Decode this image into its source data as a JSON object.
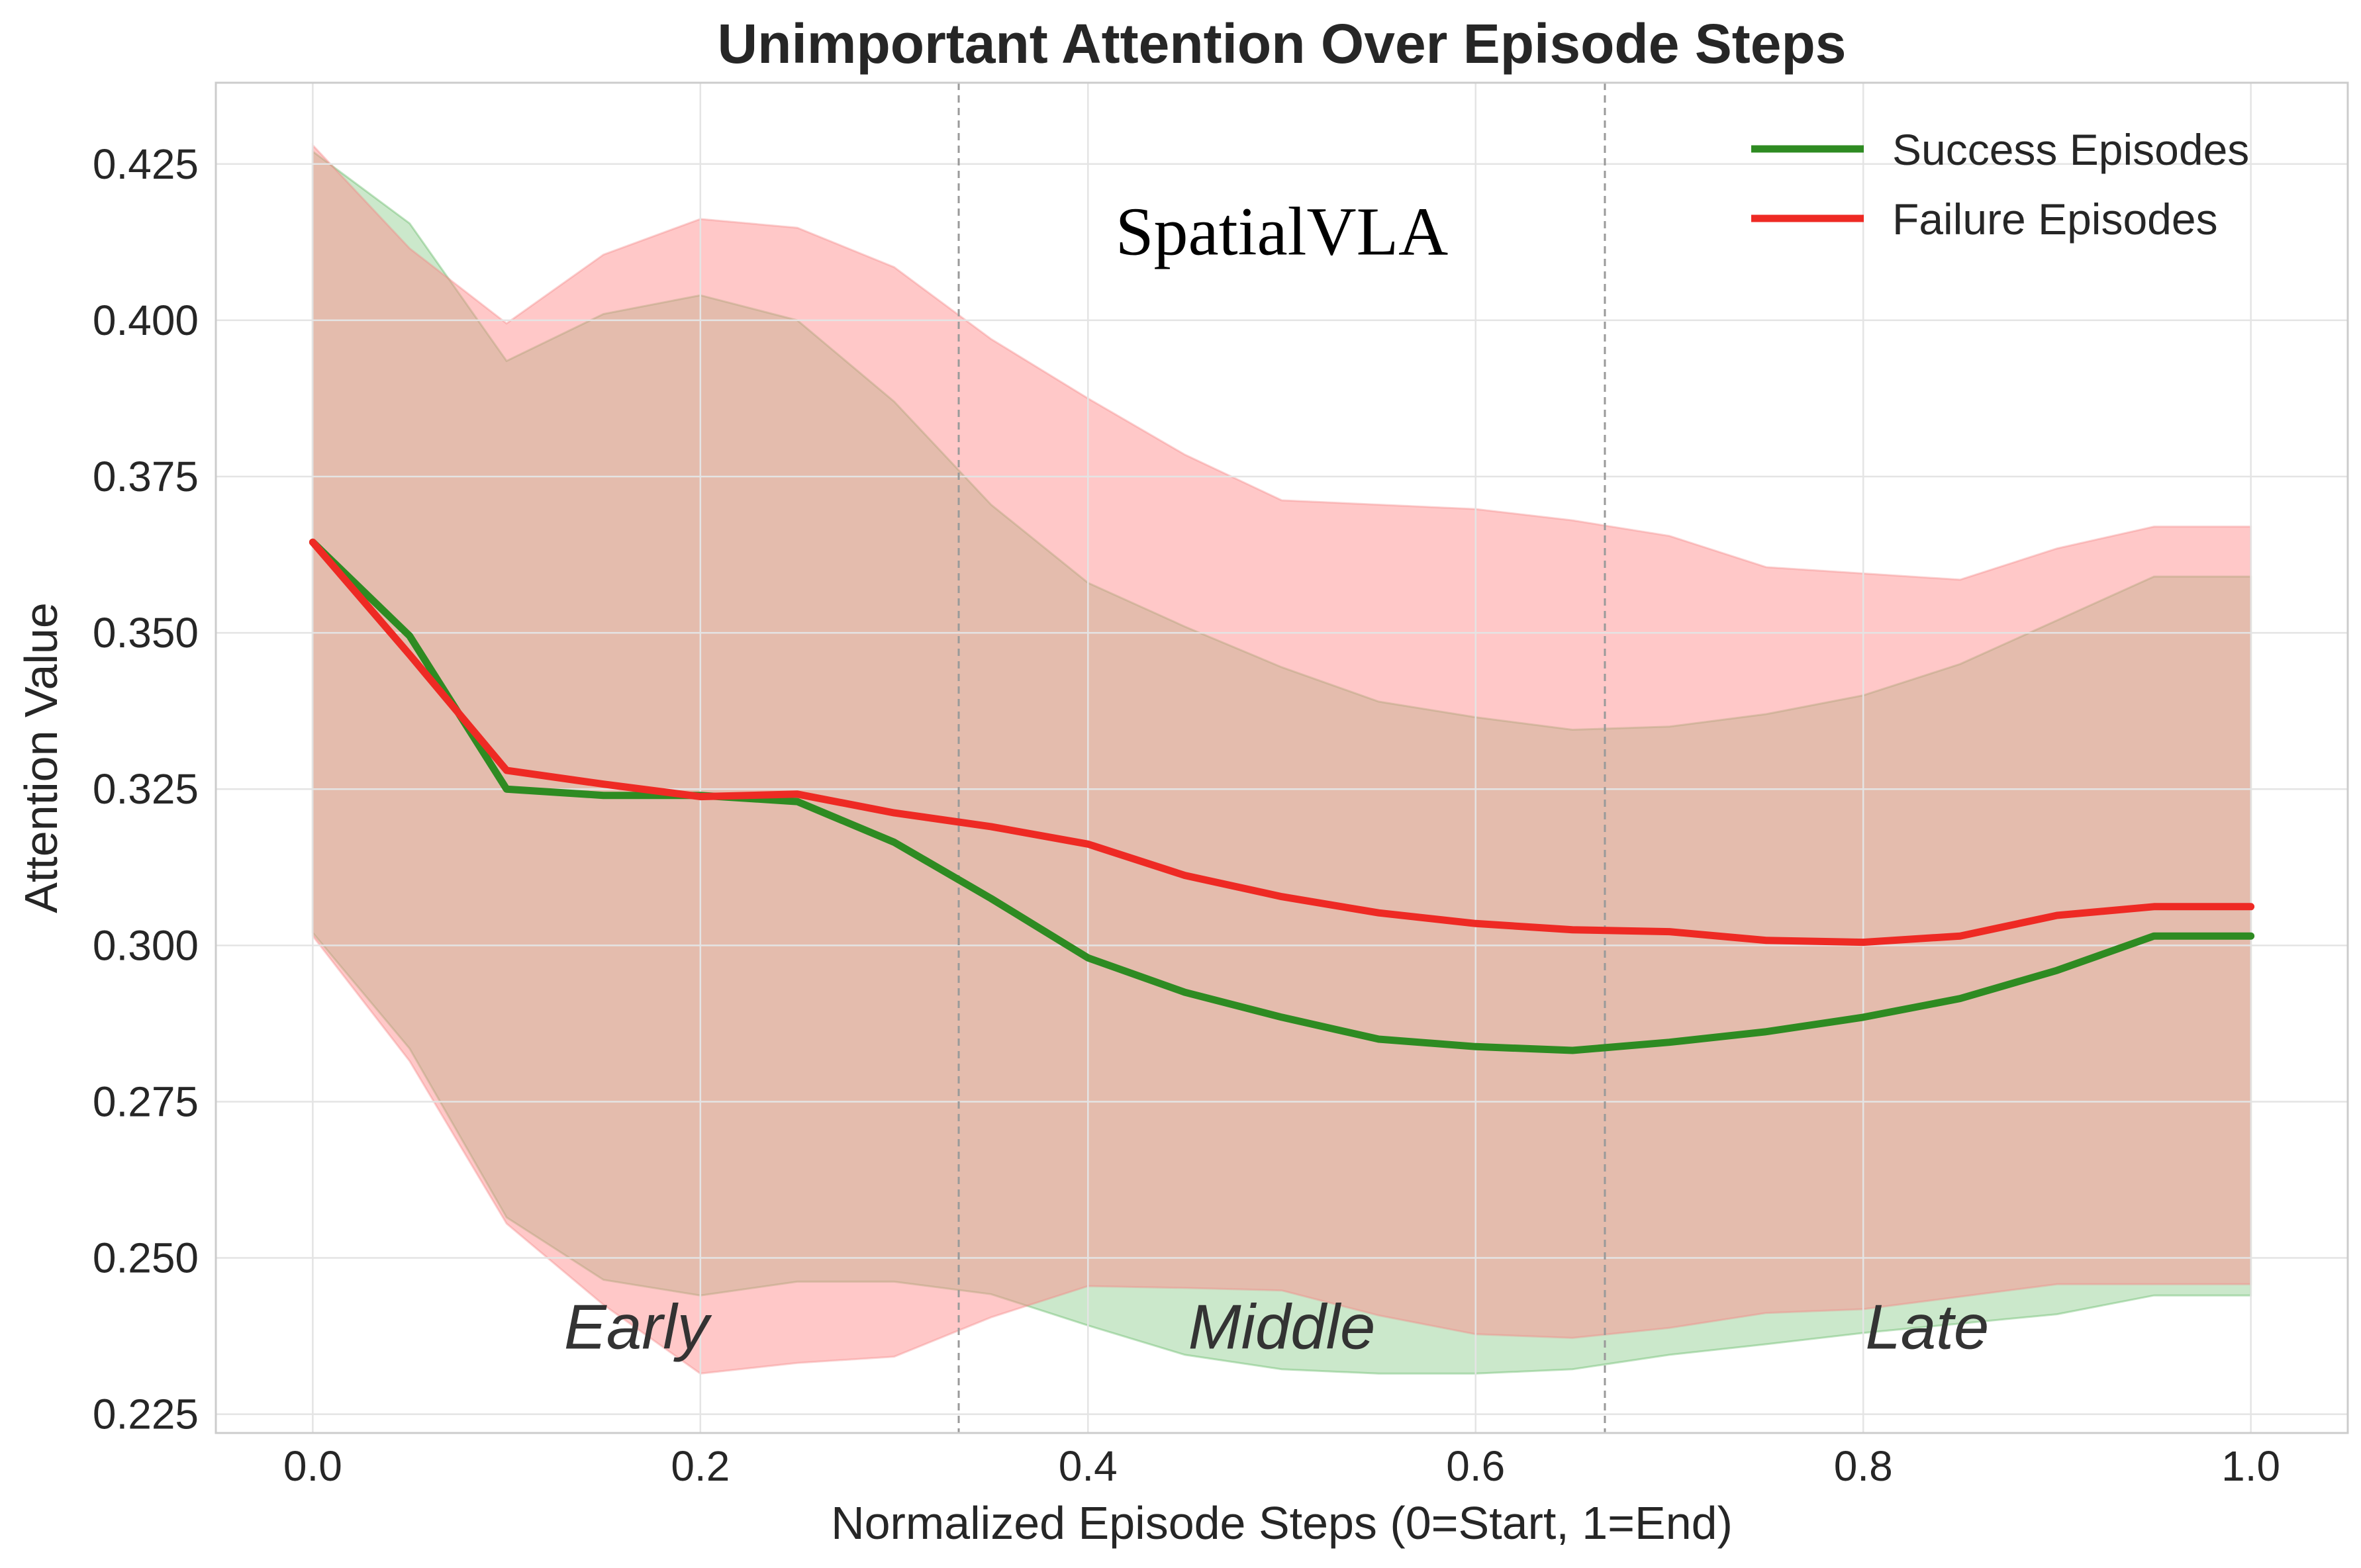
{
  "chart_data": {
    "type": "line",
    "title": "Unimportant Attention Over Episode Steps",
    "xlabel": "Normalized Episode Steps (0=Start, 1=End)",
    "ylabel": "Attention Value",
    "xlim": [
      -0.05,
      1.05
    ],
    "ylim": [
      0.222,
      0.438
    ],
    "x_ticks": [
      0.0,
      0.2,
      0.4,
      0.6,
      0.8,
      1.0
    ],
    "x_tick_labels": [
      "0.0",
      "0.2",
      "0.4",
      "0.6",
      "0.8",
      "1.0"
    ],
    "y_ticks": [
      0.225,
      0.25,
      0.275,
      0.3,
      0.325,
      0.35,
      0.375,
      0.4,
      0.425
    ],
    "y_tick_labels": [
      "0.225",
      "0.250",
      "0.275",
      "0.300",
      "0.325",
      "0.350",
      "0.375",
      "0.400",
      "0.425"
    ],
    "grid": true,
    "legend_position": "top-right",
    "phase_dividers": [
      0.3333,
      0.6667
    ],
    "phase_labels": [
      {
        "text": "Early",
        "x": 0.167,
        "y": 0.2355
      },
      {
        "text": "Middle",
        "x": 0.5,
        "y": 0.2355
      },
      {
        "text": "Late",
        "x": 0.833,
        "y": 0.2355
      }
    ],
    "annotation": {
      "text": "SpatialVLA",
      "x": 0.5,
      "y": 0.4105
    },
    "x": [
      0.0,
      0.05,
      0.1,
      0.15,
      0.2,
      0.25,
      0.3,
      0.35,
      0.4,
      0.45,
      0.5,
      0.55,
      0.6,
      0.65,
      0.7,
      0.75,
      0.8,
      0.85,
      0.9,
      0.95,
      1.0
    ],
    "series": [
      {
        "name": "Success Episodes",
        "color": "#2e8b22",
        "band_color": "#6fbf6f",
        "values": [
          0.3645,
          0.3495,
          0.325,
          0.324,
          0.324,
          0.323,
          0.3165,
          0.3075,
          0.298,
          0.2925,
          0.2885,
          0.285,
          0.2838,
          0.2832,
          0.2845,
          0.2862,
          0.2885,
          0.2915,
          0.296,
          0.3015,
          0.3015
        ],
        "upper": [
          0.427,
          0.4155,
          0.3935,
          0.401,
          0.404,
          0.4,
          0.387,
          0.3705,
          0.358,
          0.351,
          0.3445,
          0.339,
          0.3365,
          0.3345,
          0.335,
          0.337,
          0.34,
          0.345,
          0.352,
          0.359,
          0.359
        ],
        "lower": [
          0.302,
          0.2835,
          0.2565,
          0.2465,
          0.244,
          0.2462,
          0.2462,
          0.2442,
          0.2392,
          0.2345,
          0.2322,
          0.2315,
          0.2315,
          0.2322,
          0.2345,
          0.2362,
          0.238,
          0.2395,
          0.241,
          0.244,
          0.244
        ]
      },
      {
        "name": "Failure Episodes",
        "color": "#ee2a24",
        "band_color": "#ff8c8c",
        "values": [
          0.3645,
          0.3465,
          0.328,
          0.3258,
          0.3238,
          0.3242,
          0.3212,
          0.319,
          0.3162,
          0.3112,
          0.3078,
          0.3052,
          0.3035,
          0.3025,
          0.3022,
          0.3008,
          0.3005,
          0.3015,
          0.3048,
          0.3062,
          0.3062
        ],
        "upper": [
          0.428,
          0.4115,
          0.3995,
          0.4105,
          0.4162,
          0.4148,
          0.4085,
          0.397,
          0.3875,
          0.3785,
          0.3712,
          0.3705,
          0.3698,
          0.368,
          0.3655,
          0.3605,
          0.3595,
          0.3585,
          0.3635,
          0.367,
          0.367
        ],
        "lower": [
          0.3015,
          0.2815,
          0.2555,
          0.2425,
          0.2315,
          0.2332,
          0.2342,
          0.2405,
          0.2455,
          0.2452,
          0.2448,
          0.2408,
          0.2378,
          0.2372,
          0.2388,
          0.2412,
          0.2418,
          0.2438,
          0.2458,
          0.2458,
          0.2458
        ]
      }
    ]
  }
}
